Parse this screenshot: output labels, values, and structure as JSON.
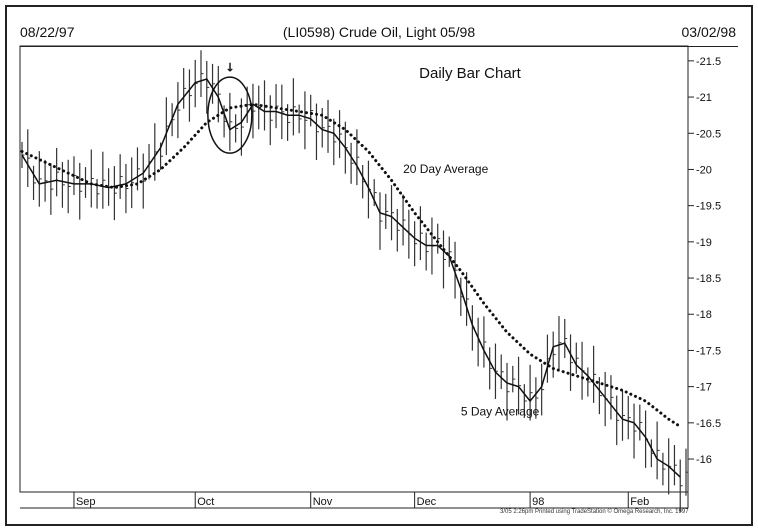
{
  "header": {
    "start_date": "08/22/97",
    "title": "(LI0598) Crude Oil, Light 05/98",
    "end_date": "03/02/98"
  },
  "footer": {
    "printed_note": "3/05 2:26pm Printed using TradeStation © Omega Research, Inc. 1997"
  },
  "chart_data": {
    "type": "line",
    "title": "Daily Bar Chart",
    "subtype": "daily OHLC bar chart with moving averages",
    "ylim": [
      15.6,
      21.65
    ],
    "y_ticks": [
      16,
      16.5,
      17,
      17.5,
      18,
      18.5,
      19,
      19.5,
      20,
      20.5,
      21,
      21.5
    ],
    "y_axis_side": "right",
    "x_tick_labels": [
      "Sep",
      "Oct",
      "Nov",
      "Dec",
      "98",
      "Feb"
    ],
    "x_tick_positions": [
      9,
      30,
      50,
      68,
      88,
      105
    ],
    "x_range": [
      0,
      115
    ],
    "grid": false,
    "series": [
      {
        "name": "5 Day Average",
        "style": "solid",
        "x": [
          0,
          3,
          6,
          9,
          12,
          15,
          18,
          21,
          24,
          27,
          30,
          32,
          34,
          36,
          38,
          40,
          42,
          44,
          46,
          48,
          50,
          52,
          54,
          56,
          58,
          60,
          62,
          64,
          66,
          68,
          70,
          72,
          74,
          76,
          78,
          80,
          82,
          84,
          86,
          88,
          90,
          92,
          94,
          96,
          98,
          100,
          102,
          104,
          106,
          108,
          110,
          112,
          114
        ],
        "y": [
          20.2,
          19.8,
          19.85,
          19.8,
          19.8,
          19.75,
          19.8,
          19.95,
          20.3,
          20.9,
          21.2,
          21.25,
          21.0,
          20.55,
          20.65,
          20.9,
          20.8,
          20.8,
          20.75,
          20.75,
          20.7,
          20.55,
          20.5,
          20.3,
          20.05,
          19.75,
          19.4,
          19.35,
          19.2,
          19.05,
          18.95,
          18.95,
          18.8,
          18.35,
          17.85,
          17.5,
          17.2,
          17.05,
          17.0,
          16.8,
          17.0,
          17.55,
          17.6,
          17.3,
          17.15,
          16.95,
          16.75,
          16.55,
          16.5,
          16.3,
          16.0,
          15.9,
          15.75
        ]
      },
      {
        "name": "20 Day Average",
        "style": "dotted",
        "x": [
          0,
          4,
          8,
          12,
          16,
          20,
          24,
          28,
          32,
          36,
          40,
          44,
          48,
          52,
          56,
          60,
          64,
          68,
          72,
          76,
          80,
          84,
          88,
          92,
          96,
          100,
          104,
          108,
          112,
          114
        ],
        "y": [
          20.25,
          20.1,
          19.95,
          19.8,
          19.75,
          19.8,
          20.0,
          20.3,
          20.65,
          20.85,
          20.9,
          20.85,
          20.8,
          20.75,
          20.55,
          20.25,
          19.85,
          19.4,
          19.0,
          18.6,
          18.15,
          17.75,
          17.45,
          17.25,
          17.15,
          17.05,
          16.95,
          16.8,
          16.55,
          16.45
        ]
      }
    ],
    "annotations": [
      {
        "text": "20 Day Average",
        "x": 66,
        "y": 19.95
      },
      {
        "text": "5 Day Average",
        "x": 76,
        "y": 16.6
      },
      {
        "text": "↓",
        "x": 36,
        "y": 21.35,
        "kind": "arrow"
      },
      {
        "text": "",
        "x": 36,
        "y": 20.75,
        "kind": "circle"
      }
    ]
  }
}
